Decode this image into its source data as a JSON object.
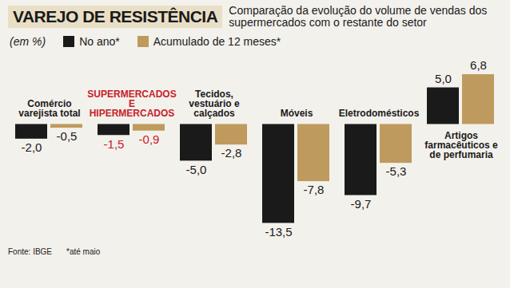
{
  "chart_data": {
    "type": "bar",
    "title": "VAREJO DE RESISTÊNCIA",
    "subtitle": "Comparação da evolução do volume de vendas dos supermercados com o restante do setor",
    "ylabel": "(em %)",
    "source": "Fonte: IBGE",
    "note": "*até maio",
    "categories": [
      "Comércio varejista total",
      "SUPERMERCADOS E HIPERMERCADOS",
      "Tecidos, vestuário e calçados",
      "Móveis",
      "Eletrodomésticos",
      "Artigos farmacêuticos e de perfumaria"
    ],
    "series": [
      {
        "name": "No ano*",
        "color": "#1a1a1a",
        "values": [
          -2.0,
          -1.5,
          -5.0,
          -13.5,
          -9.7,
          5.0
        ],
        "value_labels": [
          "-2,0",
          "-1,5",
          "-5,0",
          "-13,5",
          "-9,7",
          "5,0"
        ]
      },
      {
        "name": "Acumulado de 12 meses*",
        "color": "#bf9a5e",
        "values": [
          -0.5,
          -0.9,
          -2.8,
          -7.8,
          -5.3,
          6.8
        ],
        "value_labels": [
          "-0,5",
          "-0,9",
          "-2,8",
          "-7,8",
          "-5,3",
          "6,8"
        ]
      }
    ],
    "ylim": [
      -14,
      8
    ],
    "data_labels": true,
    "tick_labels": false,
    "legend": "top-left"
  }
}
